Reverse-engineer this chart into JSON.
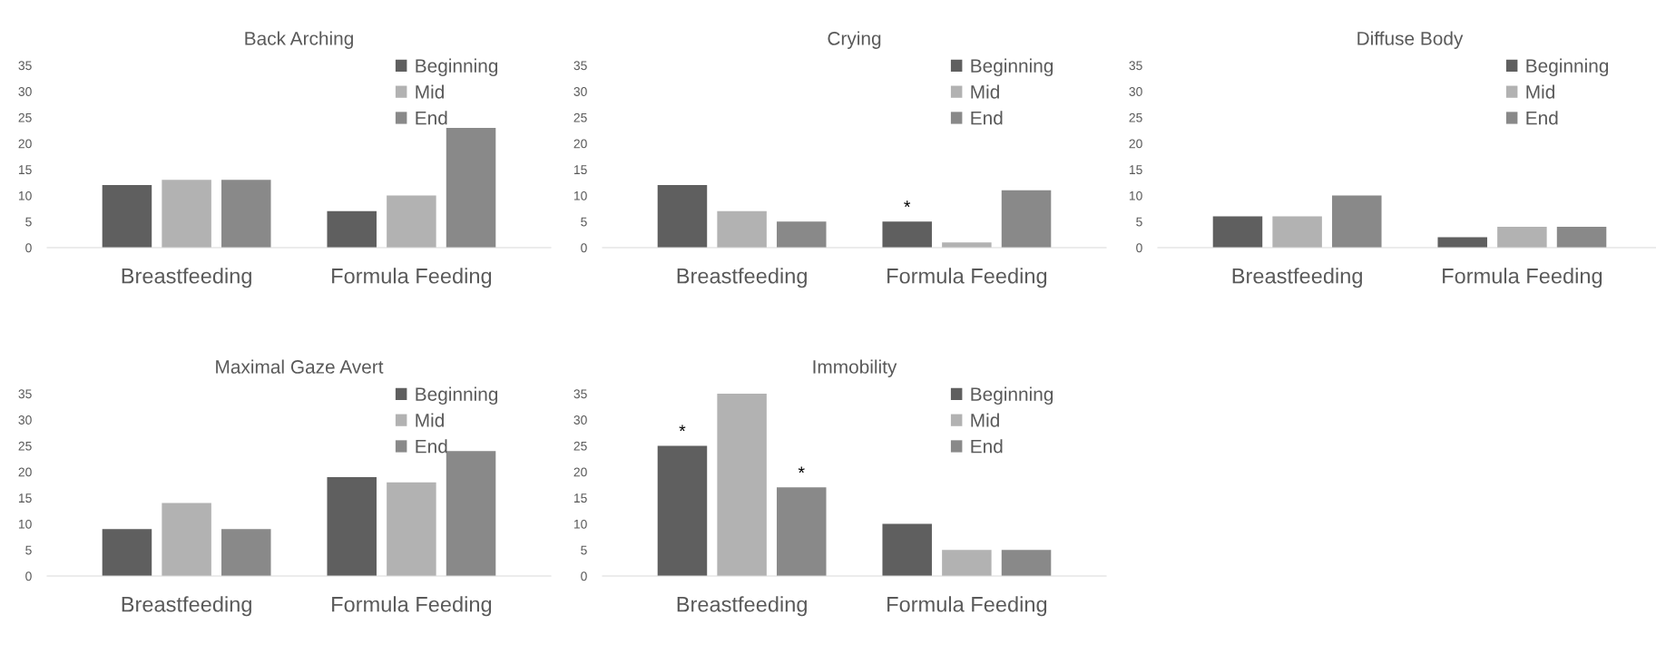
{
  "chart_data": [
    {
      "type": "bar",
      "title": "Back Arching",
      "categories": [
        "Breastfeeding",
        "Formula Feeding"
      ],
      "ylim": [
        0,
        35
      ],
      "yticks": [
        0,
        5,
        10,
        15,
        20,
        25,
        30,
        35
      ],
      "legend": "top right",
      "grid": false,
      "series": [
        {
          "name": "Beginning",
          "color": "#5f5f5f",
          "values": [
            12,
            7
          ]
        },
        {
          "name": "Mid",
          "color": "#b2b2b2",
          "values": [
            13,
            10
          ]
        },
        {
          "name": "End",
          "color": "#898989",
          "values": [
            13,
            23
          ]
        }
      ]
    },
    {
      "type": "bar",
      "title": "Crying",
      "categories": [
        "Breastfeeding",
        "Formula Feeding"
      ],
      "ylim": [
        0,
        35
      ],
      "yticks": [
        0,
        5,
        10,
        15,
        20,
        25,
        30,
        35
      ],
      "legend": "top right",
      "grid": false,
      "series": [
        {
          "name": "Beginning",
          "color": "#5f5f5f",
          "values": [
            12,
            5
          ],
          "value_labels": [
            null,
            "*"
          ]
        },
        {
          "name": "Mid",
          "color": "#b2b2b2",
          "values": [
            7,
            1
          ]
        },
        {
          "name": "End",
          "color": "#898989",
          "values": [
            5,
            11
          ]
        }
      ]
    },
    {
      "type": "bar",
      "title": "Diffuse Body",
      "categories": [
        "Breastfeeding",
        "Formula Feeding"
      ],
      "ylim": [
        0,
        35
      ],
      "yticks": [
        0,
        5,
        10,
        15,
        20,
        25,
        30,
        35
      ],
      "legend": "top right",
      "grid": false,
      "series": [
        {
          "name": "Beginning",
          "color": "#5f5f5f",
          "values": [
            6,
            2
          ]
        },
        {
          "name": "Mid",
          "color": "#b2b2b2",
          "values": [
            6,
            4
          ]
        },
        {
          "name": "End",
          "color": "#898989",
          "values": [
            10,
            4
          ]
        }
      ]
    },
    {
      "type": "bar",
      "title": "Maximal Gaze Avert",
      "categories": [
        "Breastfeeding",
        "Formula Feeding"
      ],
      "ylim": [
        0,
        35
      ],
      "yticks": [
        0,
        5,
        10,
        15,
        20,
        25,
        30,
        35
      ],
      "legend": "top right",
      "grid": false,
      "series": [
        {
          "name": "Beginning",
          "color": "#5f5f5f",
          "values": [
            9,
            19
          ]
        },
        {
          "name": "Mid",
          "color": "#b2b2b2",
          "values": [
            14,
            18
          ]
        },
        {
          "name": "End",
          "color": "#898989",
          "values": [
            9,
            24
          ]
        }
      ]
    },
    {
      "type": "bar",
      "title": "Immobility",
      "categories": [
        "Breastfeeding",
        "Formula Feeding"
      ],
      "ylim": [
        0,
        35
      ],
      "yticks": [
        0,
        5,
        10,
        15,
        20,
        25,
        30,
        35
      ],
      "legend": "top right",
      "grid": false,
      "series": [
        {
          "name": "Beginning",
          "color": "#5f5f5f",
          "values": [
            25,
            10
          ],
          "value_labels": [
            "*",
            null
          ]
        },
        {
          "name": "Mid",
          "color": "#b2b2b2",
          "values": [
            35,
            5
          ]
        },
        {
          "name": "End",
          "color": "#898989",
          "values": [
            17,
            5
          ],
          "value_labels": [
            "*",
            null
          ]
        }
      ]
    }
  ]
}
